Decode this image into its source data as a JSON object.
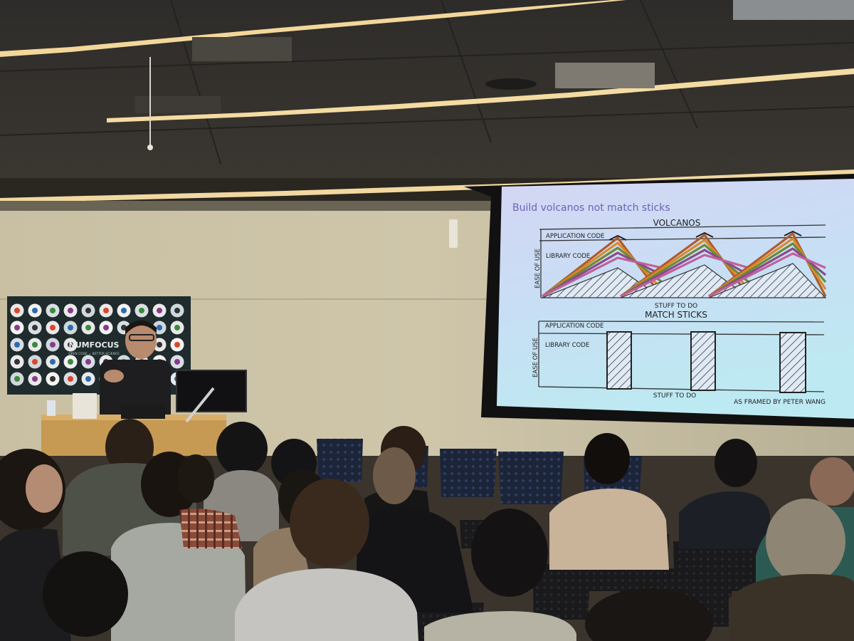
{
  "banner": {
    "logo_text": "NUMFOCUS",
    "tagline": "OPEN CODE = BETTER SCIENCE"
  },
  "slide": {
    "title": "Build volcanos not match sticks",
    "top_panel": {
      "heading": "VOLCANOS",
      "application_label": "APPLICATION CODE",
      "library_label": "LIBRARY CODE",
      "y_axis_label": "EASE OF USE",
      "x_axis_label": "STUFF TO DO"
    },
    "bottom_panel": {
      "heading": "MATCH STICKS",
      "application_label": "APPLICATION CODE",
      "library_label": "LIBRARY CODE",
      "y_axis_label": "EASE OF USE",
      "x_axis_label": "STUFF TO DO"
    },
    "credit": "AS FRAMED BY PETER WANG"
  },
  "colors": {
    "screen_top": "#cfd6f2",
    "screen_bottom": "#bfe8f4",
    "slide_title": "#6a63b8",
    "volcano_lines": [
      "#b05a2a",
      "#d98a2a",
      "#6a8a3a",
      "#8a4a8a",
      "#c0609a"
    ]
  }
}
